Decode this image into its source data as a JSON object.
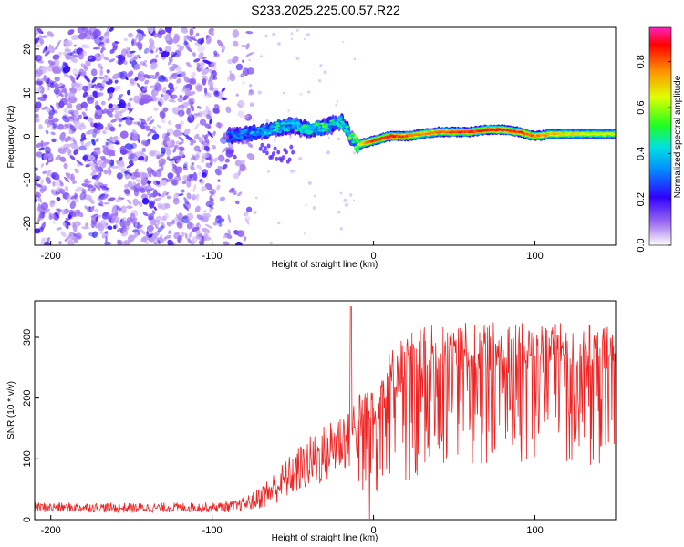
{
  "title": "S233.2025.225.00.57.R22",
  "chart_data": [
    {
      "type": "heatmap",
      "name": "spectrogram",
      "xlabel": "Height of straight line (km)",
      "ylabel": "Frequency (Hz)",
      "xlim": [
        -210,
        150
      ],
      "ylim": [
        -25,
        25
      ],
      "xticks": [
        -200,
        -100,
        0,
        100
      ],
      "xtick_labels": [
        "-200",
        "-100",
        "0",
        "100"
      ],
      "yticks": [
        20,
        10,
        0,
        -10,
        -20
      ],
      "ytick_labels": [
        "20",
        "10",
        "0",
        "-10",
        "-20"
      ],
      "colorbar": {
        "label": "Normalized spectral amplitude",
        "range": [
          0.0,
          0.95
        ],
        "ticks": [
          0.0,
          0.2,
          0.4,
          0.6,
          0.8
        ],
        "tick_labels": [
          "0.0",
          "0.2",
          "0.4",
          "0.6",
          "0.8"
        ]
      },
      "noise_region_x": [
        -210,
        -75
      ],
      "ridge": {
        "x": [
          -90,
          -80,
          -70,
          -60,
          -50,
          -40,
          -30,
          -20,
          -15,
          -10,
          0,
          10,
          20,
          30,
          40,
          50,
          60,
          70,
          80,
          90,
          100,
          110,
          120,
          130,
          140,
          150
        ],
        "freq_hz": [
          0.0,
          0.5,
          1.0,
          2.0,
          2.5,
          1.5,
          2.0,
          3.5,
          0.5,
          -2.0,
          -1.0,
          0.0,
          0.0,
          0.5,
          1.0,
          1.0,
          1.0,
          1.5,
          1.5,
          1.0,
          0.0,
          0.5,
          0.5,
          0.5,
          0.5,
          0.5
        ],
        "amplitude": [
          0.3,
          0.35,
          0.4,
          0.45,
          0.45,
          0.5,
          0.5,
          0.45,
          0.5,
          0.7,
          0.9,
          0.95,
          0.9,
          0.8,
          0.85,
          0.9,
          0.9,
          0.95,
          0.95,
          0.9,
          0.85,
          0.8,
          0.75,
          0.7,
          0.7,
          0.7
        ]
      }
    },
    {
      "type": "line",
      "name": "snr",
      "xlabel": "Height of straight line (km)",
      "ylabel": "SNR (10 * v/v)",
      "xlim": [
        -210,
        150
      ],
      "ylim": [
        0,
        360
      ],
      "xticks": [
        -200,
        -100,
        0,
        100
      ],
      "xtick_labels": [
        "-200",
        "-100",
        "0",
        "100"
      ],
      "yticks": [
        0,
        100,
        200,
        300
      ],
      "ytick_labels": [
        "0",
        "100",
        "200",
        "300"
      ],
      "color": "#ee2222",
      "envelope": {
        "x": [
          -210,
          -180,
          -150,
          -120,
          -100,
          -85,
          -75,
          -65,
          -55,
          -45,
          -35,
          -25,
          -15,
          -5,
          5,
          15,
          25,
          35,
          50,
          70,
          90,
          110,
          130,
          150
        ],
        "mean": [
          20,
          20,
          19,
          20,
          20,
          22,
          30,
          45,
          65,
          85,
          100,
          120,
          140,
          165,
          200,
          235,
          255,
          265,
          270,
          272,
          270,
          270,
          268,
          265
        ],
        "amp": [
          10,
          10,
          10,
          10,
          10,
          12,
          18,
          30,
          40,
          50,
          60,
          65,
          70,
          80,
          85,
          85,
          80,
          75,
          75,
          75,
          75,
          75,
          75,
          75
        ]
      },
      "spike": {
        "x": -14,
        "y": 350
      }
    }
  ]
}
